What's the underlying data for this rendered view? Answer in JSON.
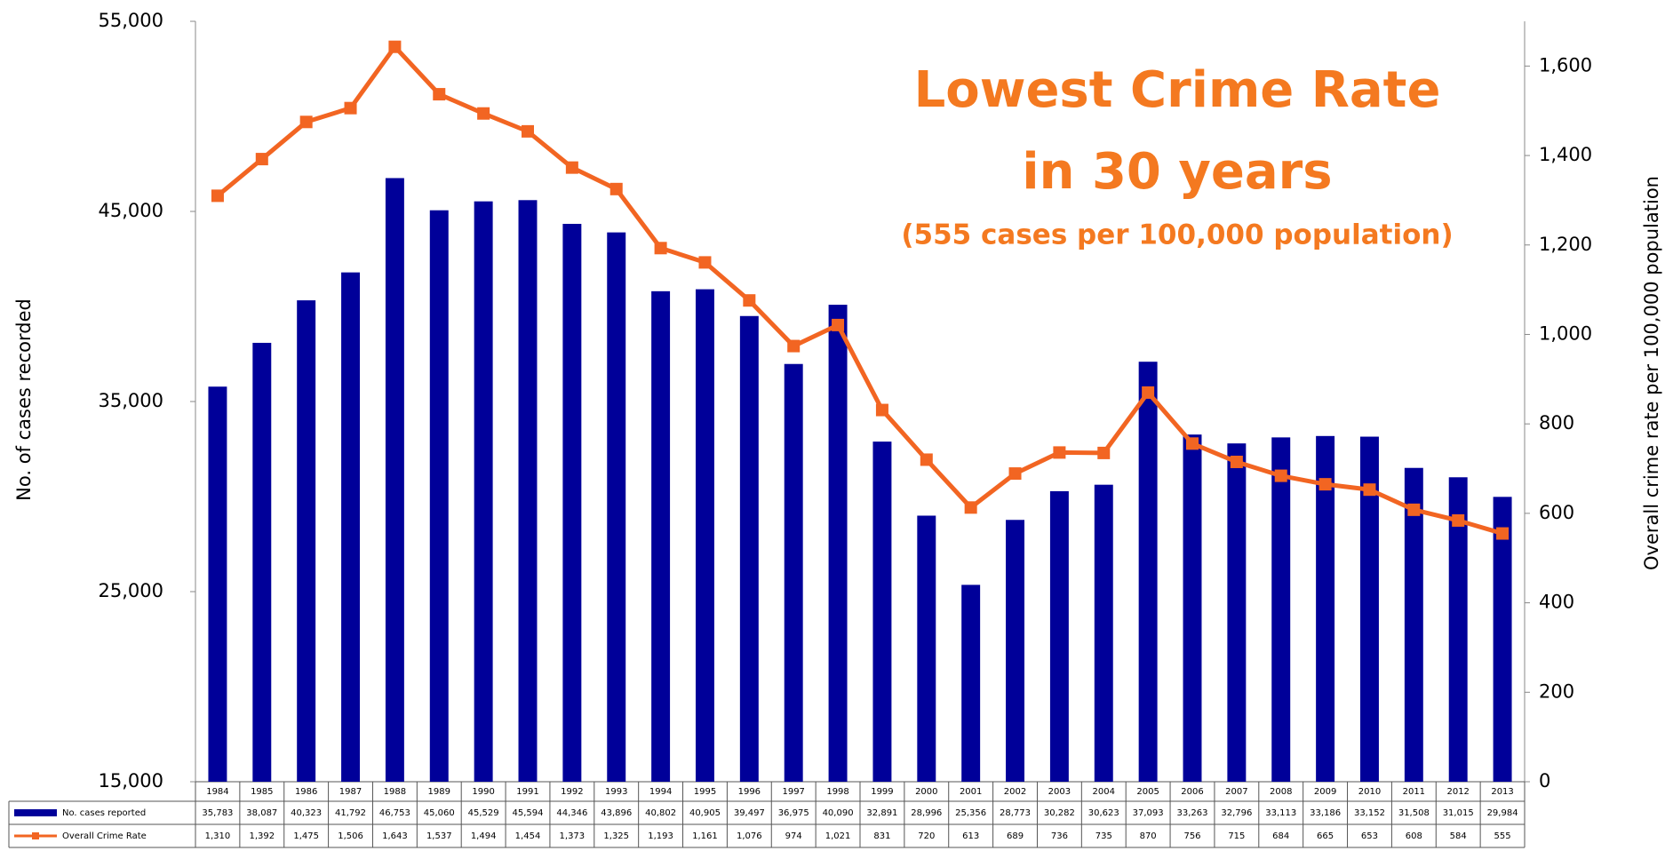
{
  "chart_data": {
    "type": "bar",
    "title": [
      "Lowest Crime Rate",
      "in 30 years"
    ],
    "subtitle": "(555 cases per 100,000 population)",
    "y_label": "No. of cases recorded",
    "y2_label": "Overall crime rate per 100,000 population",
    "categories": [
      "1984",
      "1985",
      "1986",
      "1987",
      "1988",
      "1989",
      "1990",
      "1991",
      "1992",
      "1993",
      "1994",
      "1995",
      "1996",
      "1997",
      "1998",
      "1999",
      "2000",
      "2001",
      "2002",
      "2003",
      "2004",
      "2005",
      "2006",
      "2007",
      "2008",
      "2009",
      "2010",
      "2011",
      "2012",
      "2013"
    ],
    "series": [
      {
        "name": "No. cases reported",
        "type": "bar",
        "color": "#000099",
        "values": [
          35783,
          38087,
          40323,
          41792,
          46753,
          45060,
          45529,
          45594,
          44346,
          43896,
          40802,
          40905,
          39497,
          36975,
          40090,
          32891,
          28996,
          25356,
          28773,
          30282,
          30623,
          37093,
          33263,
          32796,
          33113,
          33186,
          33152,
          31508,
          31015,
          29984
        ],
        "value_labels": [
          "35,783",
          "38,087",
          "40,323",
          "41,792",
          "46,753",
          "45,060",
          "45,529",
          "45,594",
          "44,346",
          "43,896",
          "40,802",
          "40,905",
          "39,497",
          "36,975",
          "40,090",
          "32,891",
          "28,996",
          "25,356",
          "28,773",
          "30,282",
          "30,623",
          "37,093",
          "33,263",
          "32,796",
          "33,113",
          "33,186",
          "33,152",
          "31,508",
          "31,015",
          "29,984"
        ]
      },
      {
        "name": "Overall Crime Rate",
        "type": "line",
        "axis": "y2",
        "color": "#f26522",
        "values": [
          1310,
          1392,
          1475,
          1506,
          1643,
          1537,
          1494,
          1454,
          1373,
          1325,
          1193,
          1161,
          1076,
          974,
          1021,
          831,
          720,
          613,
          689,
          736,
          735,
          870,
          756,
          715,
          684,
          665,
          653,
          608,
          584,
          555
        ],
        "value_labels": [
          "1,310",
          "1,392",
          "1,475",
          "1,506",
          "1,643",
          "1,537",
          "1,494",
          "1,454",
          "1,373",
          "1,325",
          "1,193",
          "1,161",
          "1,076",
          "974",
          "1,021",
          "831",
          "720",
          "613",
          "689",
          "736",
          "735",
          "870",
          "756",
          "715",
          "684",
          "665",
          "653",
          "608",
          "584",
          "555"
        ]
      }
    ],
    "ylim": [
      15000,
      55000
    ],
    "yticks": [
      {
        "value": 15000,
        "label": "15,000"
      },
      {
        "value": 25000,
        "label": "25,000"
      },
      {
        "value": 35000,
        "label": "35,000"
      },
      {
        "value": 45000,
        "label": "45,000"
      },
      {
        "value": 55000,
        "label": "55,000"
      }
    ],
    "y2lim": [
      0,
      1700
    ],
    "y2ticks": [
      0,
      200,
      400,
      600,
      800,
      {
        "value": 1000,
        "label": "1,000"
      },
      {
        "value": 1200,
        "label": "1,200"
      },
      {
        "value": 1400,
        "label": "1,400"
      },
      {
        "value": 1600,
        "label": "1,600"
      }
    ],
    "grid": false
  }
}
